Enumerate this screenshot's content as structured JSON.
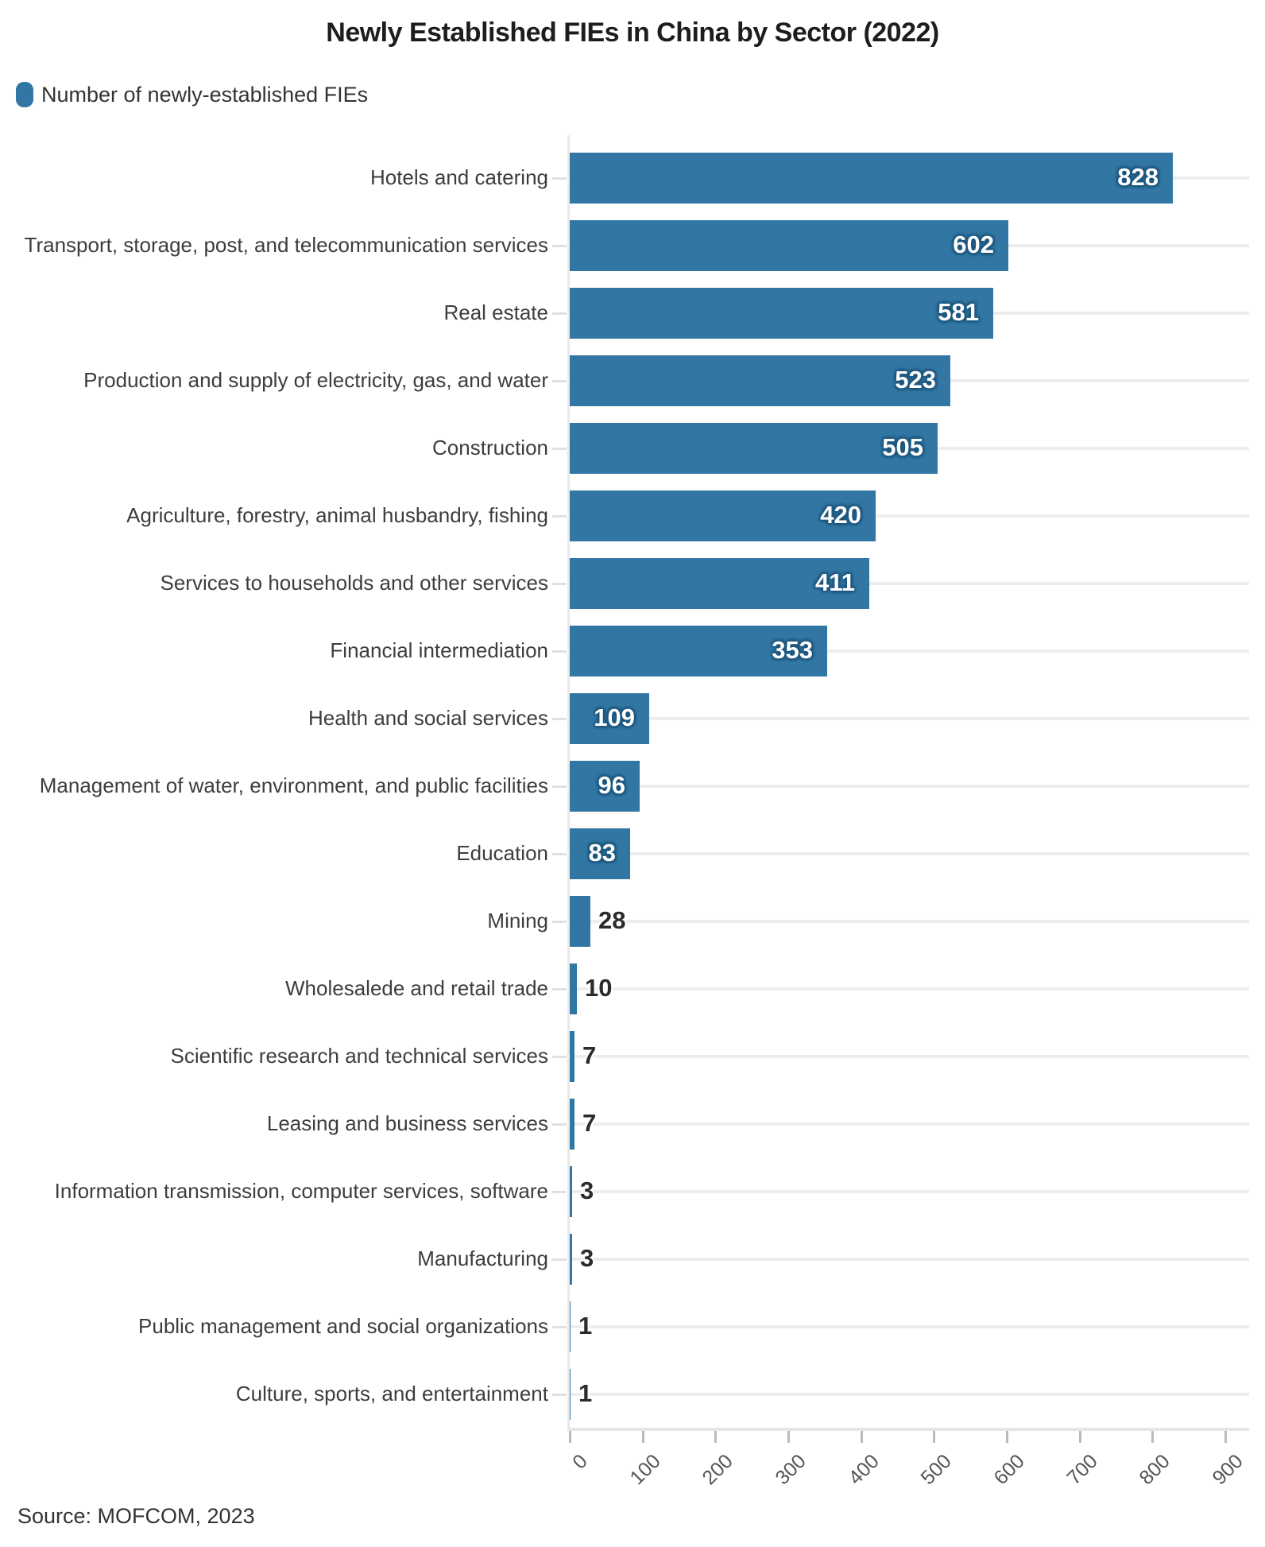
{
  "title": "Newly Established FIEs in China by Sector (2022)",
  "legend": {
    "label": "Number of newly-established FIEs"
  },
  "source": "Source: MOFCOM, 2023",
  "colors": {
    "bar": "#3277a4",
    "grid": "#ededed",
    "axis_line": "#e6e6e6",
    "y_axis_line": "#e8e8e8",
    "x_tick": "#bbbbbb",
    "y_tick": "#e0e0e0",
    "title_text": "#1d1d1d",
    "category_text": "#3d3d3d",
    "tick_text": "#555555",
    "value_inside_text": "#ffffff",
    "value_outside_text": "#2b2b2b"
  },
  "chart_data": {
    "type": "bar",
    "orientation": "horizontal",
    "title": "Newly Established FIEs in China by Sector (2022)",
    "series_name": "Number of newly-established FIEs",
    "categories": [
      "Hotels and catering",
      "Transport, storage, post, and telecommunication services",
      "Real estate",
      "Production and supply of electricity, gas, and water",
      "Construction",
      "Agriculture, forestry, animal husbandry, fishing",
      "Services to households and other services",
      "Financial intermediation",
      "Health and social services",
      "Management of water, environment, and public facilities",
      "Education",
      "Mining",
      "Wholesalede and retail trade",
      "Scientific research and technical services",
      "Leasing and business services",
      "Information transmission, computer services, software",
      "Manufacturing",
      "Public management and social organizations",
      "Culture, sports, and entertainment"
    ],
    "values": [
      828,
      602,
      581,
      523,
      505,
      420,
      411,
      353,
      109,
      96,
      83,
      28,
      10,
      7,
      7,
      3,
      3,
      1,
      1
    ],
    "xlim": [
      0,
      900
    ],
    "x_ticks": [
      0,
      100,
      200,
      300,
      400,
      500,
      600,
      700,
      800,
      900
    ],
    "x_tick_rotation": 45,
    "grid": "horizontal-per-category",
    "legend_position": "top-left",
    "value_label_placement": "inside-end when value >= 50, outside-right otherwise",
    "source": "Source: MOFCOM, 2023"
  }
}
